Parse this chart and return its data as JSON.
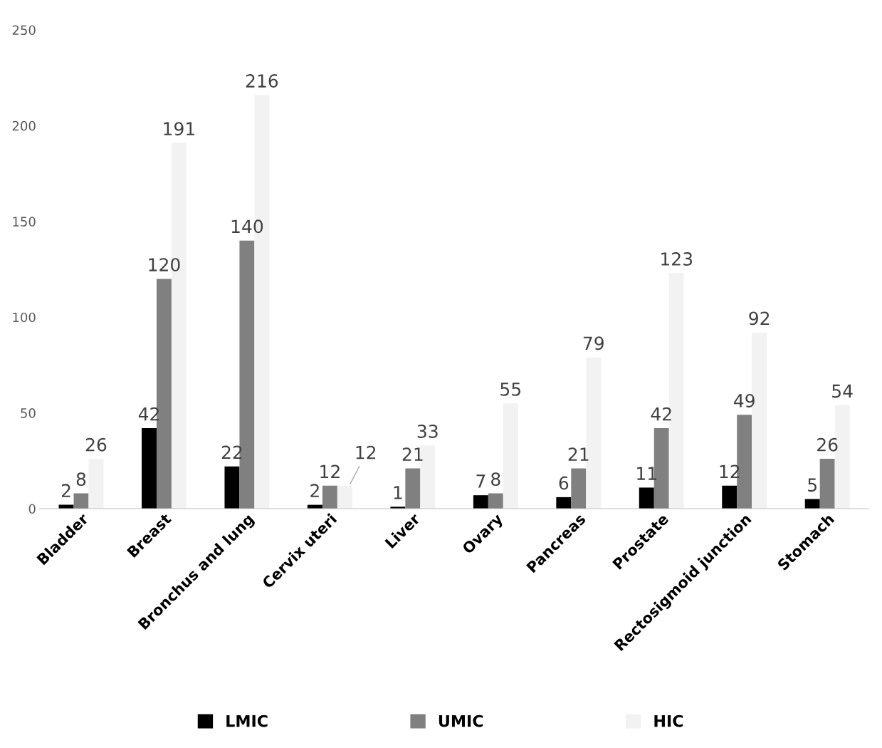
{
  "chart_data": {
    "type": "bar",
    "categories": [
      "Bladder",
      "Breast",
      "Bronchus and lung",
      "Cervix uteri",
      "Liver",
      "Ovary",
      "Pancreas",
      "Prostate",
      "Rectosigmoid junction",
      "Stomach"
    ],
    "series": [
      {
        "name": "LMIC",
        "color": "#000000",
        "values": [
          2,
          42,
          22,
          2,
          1,
          7,
          6,
          11,
          12,
          5
        ]
      },
      {
        "name": "UMIC",
        "color": "#808080",
        "values": [
          8,
          120,
          140,
          12,
          21,
          8,
          21,
          42,
          49,
          26
        ]
      },
      {
        "name": "HIC",
        "color": "#f2f2f2",
        "values": [
          26,
          191,
          216,
          12,
          33,
          55,
          79,
          123,
          92,
          54
        ]
      }
    ],
    "ylim": [
      0,
      250
    ],
    "yticks": [
      0,
      50,
      100,
      150,
      200,
      250
    ],
    "grid": false,
    "legend": "bottom",
    "data_labels": true
  }
}
